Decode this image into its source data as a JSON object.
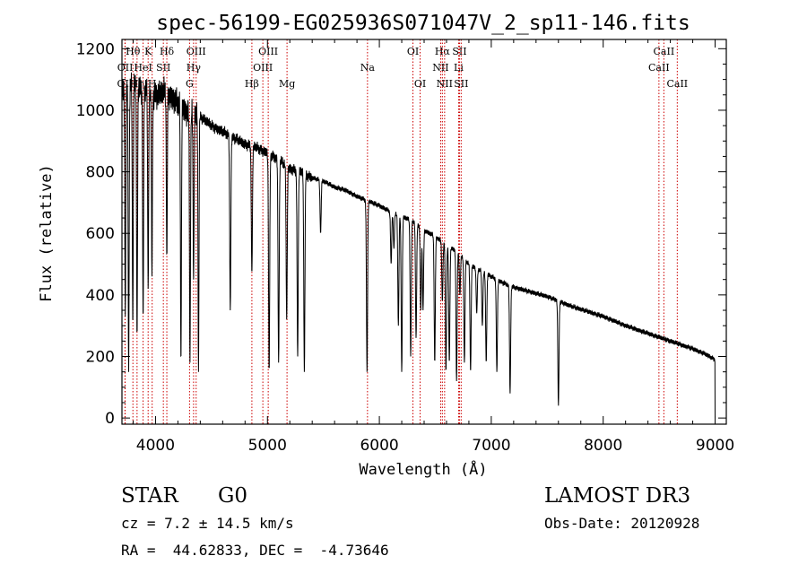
{
  "chart_data": {
    "type": "line",
    "title": "spec-56199-EG025936S071047V_2_sp11-146.fits",
    "xlabel": "Wavelength (Å)",
    "ylabel": "Flux (relative)",
    "xlim": [
      3700,
      9100
    ],
    "ylim": [
      -20,
      1230
    ],
    "xticks": [
      4000,
      5000,
      6000,
      7000,
      8000,
      9000
    ],
    "yticks": [
      0,
      200,
      400,
      600,
      800,
      1000,
      1200
    ],
    "grid": false,
    "line_color": "#000000",
    "marker_color": "#cc0000",
    "series": [
      {
        "name": "flux",
        "continuum": [
          [
            3700,
            1060
          ],
          [
            3800,
            1080
          ],
          [
            3900,
            1070
          ],
          [
            4000,
            1050
          ],
          [
            4100,
            1060
          ],
          [
            4200,
            1020
          ],
          [
            4300,
            990
          ],
          [
            4400,
            980
          ],
          [
            4500,
            950
          ],
          [
            4600,
            930
          ],
          [
            4700,
            910
          ],
          [
            4800,
            890
          ],
          [
            4900,
            880
          ],
          [
            5000,
            860
          ],
          [
            5100,
            840
          ],
          [
            5200,
            810
          ],
          [
            5300,
            800
          ],
          [
            5400,
            780
          ],
          [
            5500,
            770
          ],
          [
            5600,
            750
          ],
          [
            5700,
            740
          ],
          [
            5800,
            720
          ],
          [
            5900,
            705
          ],
          [
            6000,
            690
          ],
          [
            6100,
            670
          ],
          [
            6200,
            655
          ],
          [
            6300,
            640
          ],
          [
            6400,
            610
          ],
          [
            6500,
            590
          ],
          [
            6600,
            560
          ],
          [
            6700,
            540
          ],
          [
            6800,
            500
          ],
          [
            6900,
            480
          ],
          [
            7000,
            460
          ],
          [
            7100,
            440
          ],
          [
            7200,
            425
          ],
          [
            7300,
            415
          ],
          [
            7500,
            395
          ],
          [
            7700,
            365
          ],
          [
            8000,
            330
          ],
          [
            8200,
            300
          ],
          [
            8400,
            275
          ],
          [
            8600,
            250
          ],
          [
            8800,
            225
          ],
          [
            8900,
            210
          ],
          [
            9000,
            190
          ]
        ],
        "absorption": [
          [
            3730,
            330
          ],
          [
            3760,
            150
          ],
          [
            3797,
            300
          ],
          [
            3835,
            260
          ],
          [
            3889,
            320
          ],
          [
            3934,
            420
          ],
          [
            3968,
            460
          ],
          [
            4101,
            520
          ],
          [
            4227,
            180
          ],
          [
            4308,
            180
          ],
          [
            4340,
            450
          ],
          [
            4384,
            150
          ],
          [
            4668,
            350
          ],
          [
            4861,
            470
          ],
          [
            5015,
            150
          ],
          [
            5100,
            180
          ],
          [
            5172,
            320
          ],
          [
            5270,
            200
          ],
          [
            5330,
            150
          ],
          [
            5475,
            600
          ],
          [
            5890,
            150
          ],
          [
            6105,
            500
          ],
          [
            6130,
            550
          ],
          [
            6170,
            300
          ],
          [
            6200,
            150
          ],
          [
            6280,
            200
          ],
          [
            6328,
            260
          ],
          [
            6370,
            350
          ],
          [
            6390,
            350
          ],
          [
            6495,
            180
          ],
          [
            6563,
            380
          ],
          [
            6595,
            150
          ],
          [
            6625,
            180
          ],
          [
            6690,
            120
          ],
          [
            6720,
            400
          ],
          [
            6760,
            180
          ],
          [
            6815,
            150
          ],
          [
            6870,
            340
          ],
          [
            6920,
            300
          ],
          [
            6955,
            180
          ],
          [
            7020,
            480
          ],
          [
            7050,
            150
          ],
          [
            7168,
            80
          ],
          [
            7600,
            40
          ]
        ]
      }
    ],
    "lines": [
      {
        "name": "OII",
        "wavelength": 3727,
        "row": 3
      },
      {
        "name": "Hθ",
        "wavelength": 3798,
        "row": 1
      },
      {
        "name": "OII",
        "wavelength": 3729,
        "row": 2
      },
      {
        "name": "Hη",
        "wavelength": 3835,
        "row": 3
      },
      {
        "name": "K",
        "wavelength": 3934,
        "row": 1
      },
      {
        "name": "HeI",
        "wavelength": 3889,
        "row": 2
      },
      {
        "name": "H",
        "wavelength": 3970,
        "row": 3
      },
      {
        "name": "Hδ",
        "wavelength": 4101,
        "row": 1
      },
      {
        "name": "SII",
        "wavelength": 4070,
        "row": 2
      },
      {
        "name": "OIII",
        "wavelength": 4363,
        "row": 1
      },
      {
        "name": "Hγ",
        "wavelength": 4340,
        "row": 2
      },
      {
        "name": "G",
        "wavelength": 4304,
        "row": 3
      },
      {
        "name": "Hβ",
        "wavelength": 4861,
        "row": 3
      },
      {
        "name": "OIII",
        "wavelength": 5007,
        "row": 1
      },
      {
        "name": "OIII",
        "wavelength": 4959,
        "row": 2
      },
      {
        "name": "Mg",
        "wavelength": 5175,
        "row": 3
      },
      {
        "name": "Na",
        "wavelength": 5894,
        "row": 2
      },
      {
        "name": "OI",
        "wavelength": 6300,
        "row": 1
      },
      {
        "name": "OI",
        "wavelength": 6364,
        "row": 3
      },
      {
        "name": "Hα",
        "wavelength": 6563,
        "row": 1
      },
      {
        "name": "NII",
        "wavelength": 6548,
        "row": 2
      },
      {
        "name": "NII",
        "wavelength": 6583,
        "row": 3
      },
      {
        "name": "SII",
        "wavelength": 6716,
        "row": 1
      },
      {
        "name": "Li",
        "wavelength": 6708,
        "row": 2
      },
      {
        "name": "SII",
        "wavelength": 6731,
        "row": 3
      },
      {
        "name": "CaII",
        "wavelength": 8542,
        "row": 1
      },
      {
        "name": "CaII",
        "wavelength": 8498,
        "row": 2
      },
      {
        "name": "CaII",
        "wavelength": 8662,
        "row": 3
      }
    ]
  },
  "info": {
    "object_class": "STAR",
    "subclass": "G0",
    "survey": "LAMOST DR3",
    "redshift": "cz = 7.2 ± 14.5 km/s",
    "obs_date": "Obs-Date: 20120928",
    "coords": "RA =  44.62833, DEC =  -4.73646"
  }
}
